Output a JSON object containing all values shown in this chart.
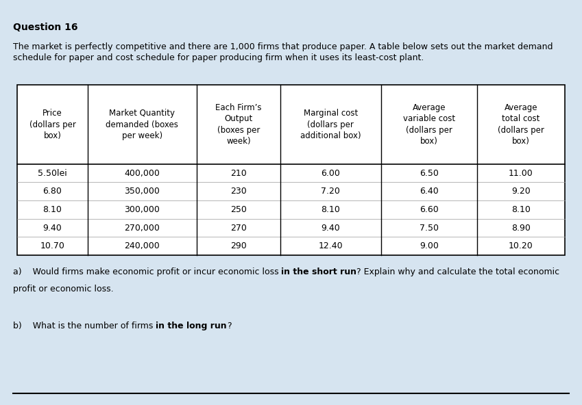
{
  "title": "Question 16",
  "intro_line1": "The market is perfectly competitive and there are 1,000 firms that produce paper. A table below sets out the market demand",
  "intro_line2": "schedule for paper and cost schedule for paper producing firm when it uses its least-cost plant.",
  "col_headers": [
    "Price\n(dollars per\nbox)",
    "Market Quantity\ndemanded (boxes\nper week)",
    "Each Firm’s\nOutput\n(boxes per\nweek)",
    "Marginal cost\n(dollars per\nadditional box)",
    "Average\nvariable cost\n(dollars per\nbox)",
    "Average\ntotal cost\n(dollars per\nbox)"
  ],
  "table_data": [
    [
      "5.50lei",
      "400,000",
      "210",
      "6.00",
      "6.50",
      "11.00"
    ],
    [
      "6.80",
      "350,000",
      "230",
      "7.20",
      "6.40",
      "9.20"
    ],
    [
      "8.10",
      "300,000",
      "250",
      "8.10",
      "6.60",
      "8.10"
    ],
    [
      "9.40",
      "270,000",
      "270",
      "9.40",
      "7.50",
      "8.90"
    ],
    [
      "10.70",
      "240,000",
      "290",
      "12.40",
      "9.00",
      "10.20"
    ]
  ],
  "qa_part1": "a)    Would firms make economic profit or incur economic loss ",
  "qa_bold": "in the short run",
  "qa_part2": "? Explain why and calculate the total economic",
  "qa_line2": "profit or economic loss.",
  "qb_part1": "b)    What is the number of firms ",
  "qb_bold": "in the long run",
  "qb_part2": "?",
  "bg_color": "#d6e4f0",
  "font_size_title": 10,
  "font_size_body": 9,
  "font_size_table": 9,
  "font_size_header": 8.5
}
